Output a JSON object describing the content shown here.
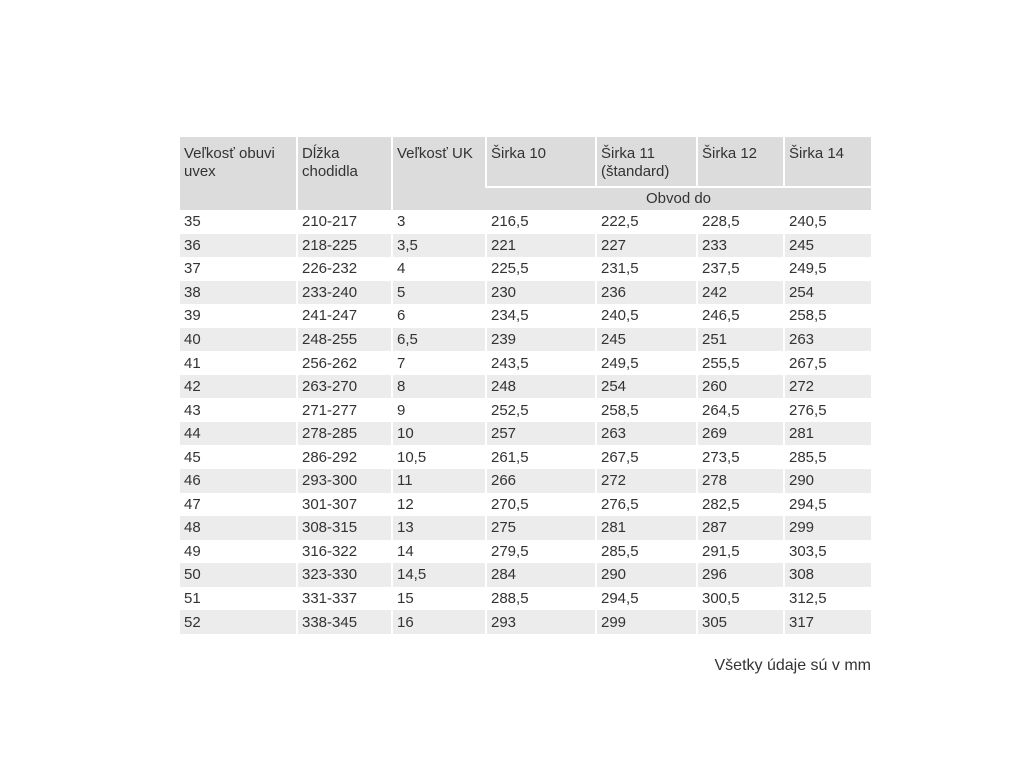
{
  "table": {
    "headers": [
      "Veľkosť obuvi uvex",
      "Dĺžka chodidla",
      "Veľkosť UK",
      "Širka 10",
      "Širka 11 (štandard)",
      "Širka 12",
      "Širka 14"
    ],
    "subheader": "Obvod do",
    "rows": [
      [
        "35",
        "210-217",
        "3",
        "216,5",
        "222,5",
        "228,5",
        "240,5"
      ],
      [
        "36",
        "218-225",
        "3,5",
        "221",
        "227",
        "233",
        "245"
      ],
      [
        "37",
        "226-232",
        "4",
        "225,5",
        "231,5",
        "237,5",
        "249,5"
      ],
      [
        "38",
        "233-240",
        "5",
        "230",
        "236",
        "242",
        "254"
      ],
      [
        "39",
        "241-247",
        "6",
        "234,5",
        "240,5",
        "246,5",
        "258,5"
      ],
      [
        "40",
        "248-255",
        "6,5",
        "239",
        "245",
        "251",
        "263"
      ],
      [
        "41",
        "256-262",
        "7",
        "243,5",
        "249,5",
        "255,5",
        "267,5"
      ],
      [
        "42",
        "263-270",
        "8",
        "248",
        "254",
        "260",
        "272"
      ],
      [
        "43",
        "271-277",
        "9",
        "252,5",
        "258,5",
        "264,5",
        "276,5"
      ],
      [
        "44",
        "278-285",
        "10",
        "257",
        "263",
        "269",
        "281"
      ],
      [
        "45",
        "286-292",
        "10,5",
        "261,5",
        "267,5",
        "273,5",
        "285,5"
      ],
      [
        "46",
        "293-300",
        "11",
        "266",
        "272",
        "278",
        "290"
      ],
      [
        "47",
        "301-307",
        "12",
        "270,5",
        "276,5",
        "282,5",
        "294,5"
      ],
      [
        "48",
        "308-315",
        "13",
        "275",
        "281",
        "287",
        "299"
      ],
      [
        "49",
        "316-322",
        "14",
        "279,5",
        "285,5",
        "291,5",
        "303,5"
      ],
      [
        "50",
        "323-330",
        "14,5",
        "284",
        "290",
        "296",
        "308"
      ],
      [
        "51",
        "331-337",
        "15",
        "288,5",
        "294,5",
        "300,5",
        "312,5"
      ],
      [
        "52",
        "338-345",
        "16",
        "293",
        "299",
        "305",
        "317"
      ]
    ]
  },
  "note": "Všetky údaje sú v mm"
}
